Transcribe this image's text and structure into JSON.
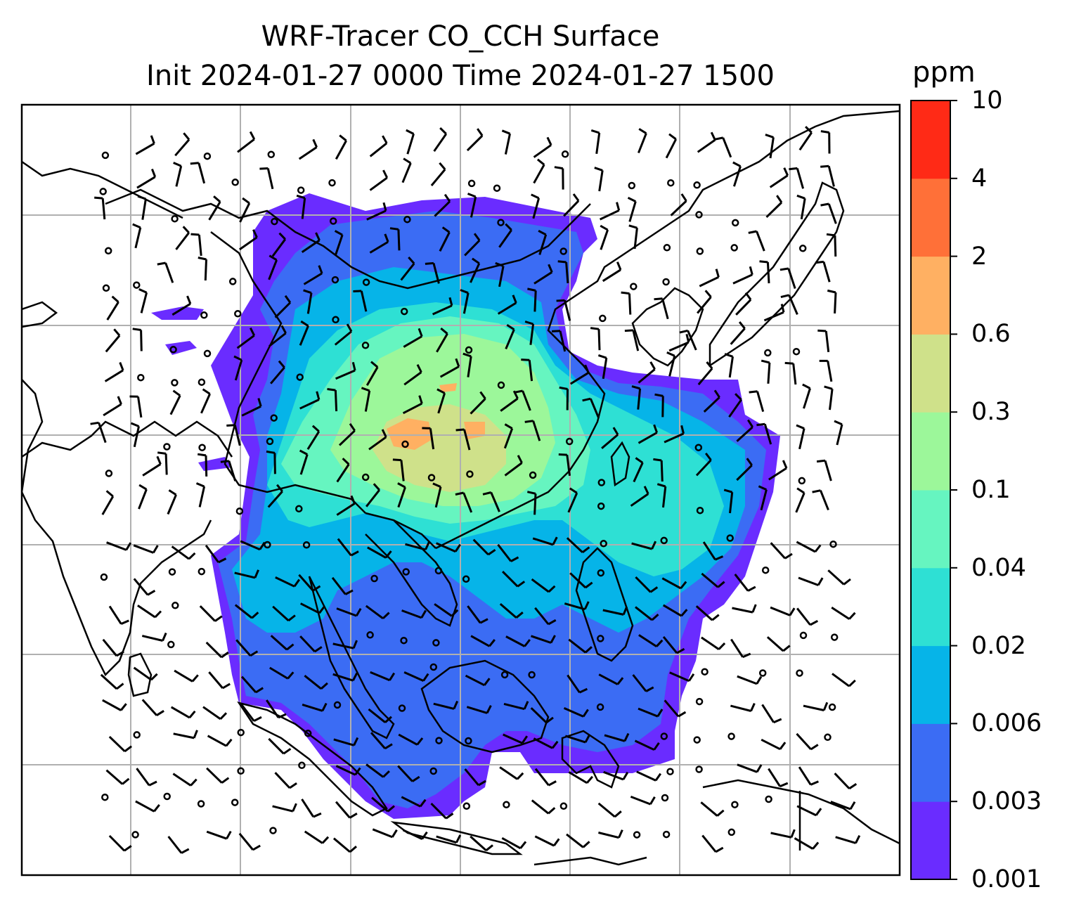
{
  "title": {
    "line1": "WRF-Tracer CO_CCH Surface",
    "line2": "Init 2024-01-27 0000 Time 2024-01-27 1500"
  },
  "colorbar": {
    "unit": "ppm",
    "ticks": [
      "0.001",
      "0.003",
      "0.006",
      "0.02",
      "0.04",
      "0.1",
      "0.3",
      "0.6",
      "2",
      "4",
      "10"
    ],
    "colors": [
      "#6a2cff",
      "#3b6cf4",
      "#06b4e8",
      "#2ee0d4",
      "#66f5c0",
      "#9cf79a",
      "#cfe18a",
      "#ffb062",
      "#ff7038",
      "#ff2a16"
    ]
  },
  "map": {
    "gridlines": true,
    "coastlines": true,
    "wind_barbs": true,
    "land_outline_color": "#000000",
    "grid_color": "#b0b0b0"
  }
}
